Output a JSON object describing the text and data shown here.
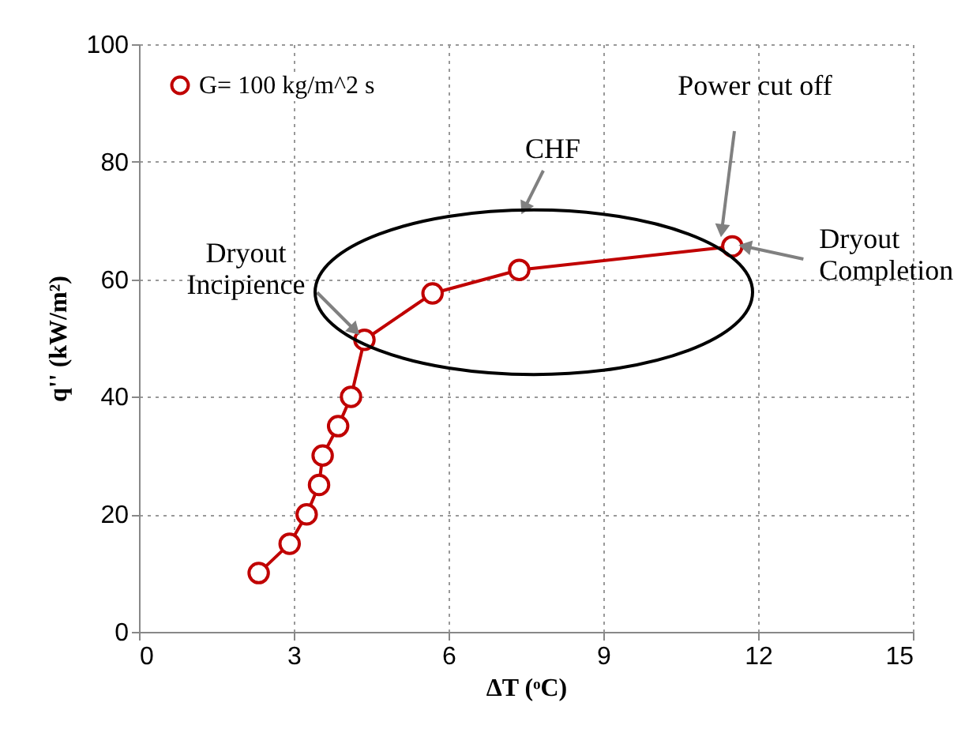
{
  "chart_data": {
    "type": "line",
    "xlabel": "ΔT (ᵒC)",
    "ylabel": "q'' (kW/m²)",
    "xlim": [
      0,
      15
    ],
    "xticks": [
      0,
      3,
      6,
      9,
      12,
      15
    ],
    "ylim": [
      0,
      100
    ],
    "yticks": [
      0,
      20,
      40,
      60,
      80,
      100
    ],
    "grid": true,
    "legend": "top left",
    "marker": "circle",
    "line_style": "solid",
    "series": [
      {
        "name": "G= 100 kg/m^2 s",
        "color": "#c00000",
        "x": [
          2.32,
          2.92,
          3.25,
          3.49,
          3.56,
          3.86,
          4.11,
          4.37,
          5.69,
          7.37,
          11.5
        ],
        "values": [
          10,
          15,
          20,
          25,
          30,
          35,
          40,
          49.7,
          57.6,
          61.6,
          65.6
        ]
      }
    ],
    "annotations": [
      {
        "text": "Dryout\nIncipience",
        "x": 4.37,
        "y": 49.7
      },
      "CHF",
      "Power cut off",
      {
        "text": "Dryout\nCompletion",
        "x": 11.5,
        "y": 65.6
      }
    ]
  }
}
